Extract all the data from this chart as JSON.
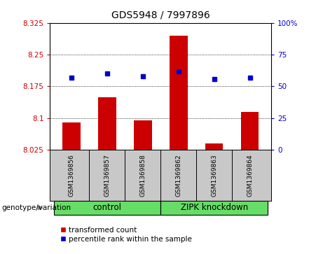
{
  "title": "GDS5948 / 7997896",
  "samples": [
    "GSM1369856",
    "GSM1369857",
    "GSM1369858",
    "GSM1369862",
    "GSM1369863",
    "GSM1369864"
  ],
  "bar_values": [
    8.09,
    8.15,
    8.095,
    8.295,
    8.04,
    8.115
  ],
  "dot_values": [
    57,
    60,
    58,
    62,
    56,
    57
  ],
  "ylim_left": [
    8.025,
    8.325
  ],
  "ylim_right": [
    0,
    100
  ],
  "yticks_left": [
    8.025,
    8.1,
    8.175,
    8.25,
    8.325
  ],
  "yticks_right": [
    0,
    25,
    50,
    75,
    100
  ],
  "ytick_labels_left": [
    "8.025",
    "8.1",
    "8.175",
    "8.25",
    "8.325"
  ],
  "ytick_labels_right": [
    "0",
    "25",
    "50",
    "75",
    "100%"
  ],
  "bar_color": "#cc0000",
  "dot_color": "#0000cc",
  "bar_bottom": 8.025,
  "grid_yticks": [
    8.1,
    8.175,
    8.25
  ],
  "group_names": [
    "control",
    "ZIPK knockdown"
  ],
  "group_color": "#66dd66",
  "sample_box_color": "#c8c8c8",
  "legend_items": [
    "transformed count",
    "percentile rank within the sample"
  ],
  "group_label": "genotype/variation"
}
